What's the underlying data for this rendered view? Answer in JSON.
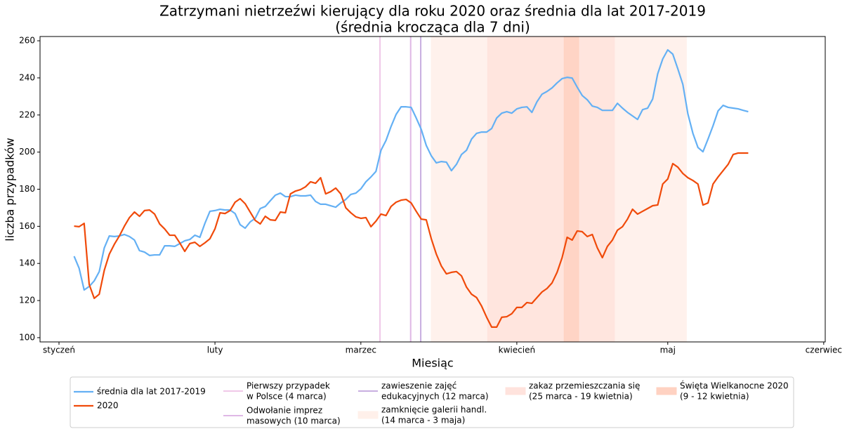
{
  "chart_data": {
    "type": "line",
    "title": "Zatrzymani nietrzeźwi kierujący dla roku 2020 oraz średnia dla lat 2017-2019",
    "subtitle": "(średnia krocząca dla 7 dni)",
    "x_label": "Miesiąc",
    "y_label": "liczba przypadków",
    "x": [
      3,
      4,
      5,
      6,
      7,
      8,
      9,
      10,
      11,
      12,
      13,
      14,
      15,
      16,
      17,
      18,
      19,
      20,
      21,
      22,
      23,
      24,
      25,
      26,
      27,
      28,
      29,
      30,
      31,
      32,
      33,
      34,
      35,
      36,
      37,
      38,
      39,
      40,
      41,
      42,
      43,
      44,
      45,
      46,
      47,
      48,
      49,
      50,
      51,
      52,
      53,
      54,
      55,
      56,
      57,
      58,
      59,
      60,
      61,
      62,
      63,
      64,
      65,
      66,
      67,
      68,
      69,
      70,
      71,
      72,
      73,
      74,
      75,
      76,
      77,
      78,
      79,
      80,
      81,
      82,
      83,
      84,
      85,
      86,
      87,
      88,
      89,
      90,
      91,
      92,
      93,
      94,
      95,
      96,
      97,
      98,
      99,
      100,
      101,
      102,
      103,
      104,
      105,
      106,
      107,
      108,
      109,
      110,
      111,
      112,
      113,
      114,
      115,
      116,
      117,
      118,
      119,
      120,
      121,
      122,
      123,
      124,
      125,
      126,
      127,
      128,
      129,
      130,
      131,
      132,
      133,
      134,
      135,
      136,
      137
    ],
    "series": [
      {
        "name": "średnia dla lat 2017-2019",
        "color": "#64b0f4",
        "values": [
          143.9,
          137.4,
          125.7,
          127.6,
          130.6,
          135.6,
          148.4,
          154.8,
          154.5,
          154.8,
          155.6,
          154.5,
          152.6,
          146.9,
          146.1,
          144.3,
          144.6,
          144.6,
          149.5,
          149.5,
          149.2,
          150.7,
          152.2,
          152.9,
          155.2,
          154.1,
          161.6,
          168.1,
          168.5,
          169.2,
          168.8,
          168.8,
          166.9,
          160.9,
          159.0,
          162.4,
          164.3,
          169.6,
          170.7,
          173.8,
          176.8,
          177.9,
          176.0,
          176.0,
          176.8,
          176.4,
          176.4,
          176.8,
          173.4,
          171.9,
          171.9,
          171.1,
          170.3,
          172.6,
          174.5,
          177.2,
          177.9,
          180.2,
          184.0,
          186.6,
          189.6,
          201.0,
          206.3,
          213.8,
          220.3,
          224.4,
          224.4,
          224.1,
          218.4,
          212.3,
          203.6,
          198.0,
          194.2,
          194.9,
          194.6,
          190.0,
          193.4,
          198.7,
          201.0,
          207.0,
          210.1,
          210.8,
          210.8,
          212.7,
          218.4,
          221.0,
          221.8,
          221.0,
          223.3,
          224.1,
          224.4,
          221.4,
          227.1,
          231.2,
          232.7,
          234.6,
          237.3,
          239.6,
          240.3,
          239.9,
          235.0,
          230.5,
          228.2,
          224.8,
          224.1,
          222.5,
          222.5,
          222.5,
          226.3,
          223.7,
          221.4,
          219.5,
          217.6,
          222.9,
          223.7,
          228.6,
          242.2,
          250.2,
          255.1,
          252.8,
          244.9,
          236.5,
          220.6,
          210.1,
          202.5,
          200.2,
          207.0,
          214.2,
          222.2,
          225.2,
          224.1,
          223.7,
          223.3,
          222.5,
          221.8
        ]
      },
      {
        "name": "2020",
        "color": "#f04a0a",
        "values": [
          160.1,
          159.8,
          161.6,
          128.7,
          121.2,
          123.4,
          136.3,
          145.0,
          150.3,
          154.8,
          160.1,
          164.7,
          167.7,
          165.4,
          168.5,
          168.8,
          166.6,
          161.3,
          158.6,
          155.2,
          155.2,
          151.1,
          146.5,
          150.7,
          151.4,
          149.2,
          151.1,
          153.3,
          158.6,
          167.3,
          166.9,
          168.5,
          173.0,
          174.9,
          172.2,
          167.7,
          163.2,
          161.3,
          165.4,
          163.5,
          163.2,
          167.7,
          167.3,
          177.5,
          179.0,
          179.8,
          181.3,
          184.0,
          183.2,
          186.2,
          177.5,
          178.7,
          180.6,
          177.5,
          170.0,
          167.3,
          165.1,
          164.3,
          164.7,
          159.8,
          162.8,
          166.6,
          165.8,
          170.7,
          173.0,
          174.1,
          174.5,
          172.6,
          168.1,
          163.9,
          163.5,
          153.3,
          145.0,
          138.6,
          134.4,
          135.2,
          135.6,
          133.3,
          127.2,
          123.4,
          121.6,
          117.0,
          111.0,
          105.7,
          105.7,
          111.0,
          111.3,
          112.9,
          116.3,
          116.3,
          118.9,
          118.5,
          121.6,
          124.6,
          126.5,
          129.5,
          135.2,
          143.1,
          154.1,
          152.6,
          157.5,
          157.1,
          154.5,
          155.6,
          148.4,
          143.1,
          149.2,
          152.6,
          157.9,
          159.8,
          163.9,
          169.2,
          166.6,
          168.1,
          169.6,
          171.1,
          171.5,
          182.8,
          185.5,
          193.8,
          191.9,
          188.5,
          186.2,
          184.7,
          182.8,
          171.5,
          172.6,
          182.8,
          186.6,
          190.0,
          193.4,
          198.7,
          199.5,
          199.5,
          199.5
        ]
      }
    ],
    "vlines": [
      {
        "name": [
          "Pierwszy przypadek",
          "w Polsce (4 marca)"
        ],
        "color": "#f0c8e8",
        "x": 63.8
      },
      {
        "name": [
          "Odwołanie imprez",
          "masowych (10 marca)"
        ],
        "color": "#dfb8e6",
        "x": 69.9
      },
      {
        "name": [
          "zawieszenie zajęć",
          "edukacyjnych (12 marca)"
        ],
        "color": "#c8aee0",
        "x": 71.9
      }
    ],
    "spans": [
      {
        "name": [
          "zamknięcie galerii handl.",
          "(14 marca - 3 maja)"
        ],
        "color": "#fff0ea",
        "x": [
          74.0,
          124.7
        ]
      },
      {
        "name": [
          "zakaz przemieszczania się",
          "(25 marca - 19 kwietnia)"
        ],
        "color": "#ffe3dd",
        "x": [
          85.2,
          110.4
        ]
      },
      {
        "name": [
          "Święta Wielkanocne 2020",
          "(9 - 12 kwietnia)"
        ],
        "color": "#ffd2c2",
        "x": [
          100.4,
          103.3
        ]
      }
    ],
    "xlim": [
      -3.77,
      152.3
    ],
    "xticks": [
      {
        "value": 0,
        "label": "styczeń"
      },
      {
        "value": 31,
        "label": "luty"
      },
      {
        "value": 60,
        "label": "marzec"
      },
      {
        "value": 91,
        "label": "kwiecień"
      },
      {
        "value": 121,
        "label": "maj"
      },
      {
        "value": 152,
        "label": "czerwiec"
      }
    ],
    "ylim": [
      97.7,
      262.3
    ],
    "yticks": [
      100,
      120,
      140,
      160,
      180,
      200,
      220,
      240,
      260
    ]
  }
}
